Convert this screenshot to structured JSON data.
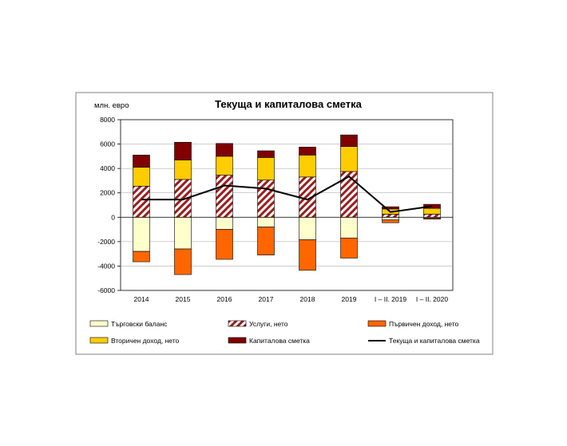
{
  "chart_data": {
    "type": "bar",
    "title": "Текуща и капиталова сметка",
    "ylabel": "млн. евро",
    "ylim": [
      -6000,
      8000
    ],
    "yticks": [
      8000,
      6000,
      4000,
      2000,
      0,
      -2000,
      -4000,
      -6000
    ],
    "categories": [
      "2014",
      "2015",
      "2016",
      "2017",
      "2018",
      "2019",
      "I – II. 2019",
      "I – II. 2020"
    ],
    "series": [
      {
        "name": "Търговски баланс",
        "kind": "bar",
        "color": "#ffffcc",
        "values": [
          -2800,
          -2600,
          -1000,
          -800,
          -1850,
          -1700,
          -220,
          -80
        ]
      },
      {
        "name": "Услуги, нето",
        "kind": "bar-hatched",
        "color": "#ffffff",
        "hatch": "#9c1c1c",
        "values": [
          2550,
          3100,
          3450,
          3050,
          3300,
          3750,
          250,
          250
        ]
      },
      {
        "name": "Първичен доход, нето",
        "kind": "bar",
        "color": "#ff6600",
        "values": [
          -850,
          -2100,
          -2450,
          -2300,
          -2500,
          -1650,
          -230,
          -80
        ]
      },
      {
        "name": "Вторичен доход, нето",
        "kind": "bar",
        "color": "#ffcc00",
        "values": [
          1550,
          1600,
          1550,
          1850,
          1800,
          2050,
          430,
          480
        ]
      },
      {
        "name": "Капиталова сметка",
        "kind": "bar",
        "color": "#800000",
        "values": [
          1000,
          1450,
          1050,
          550,
          650,
          950,
          180,
          330
        ]
      },
      {
        "name": "Текуща и капиталова сметка",
        "kind": "line",
        "color": "#000000",
        "values": [
          1450,
          1450,
          2600,
          2350,
          1450,
          3350,
          430,
          900
        ]
      }
    ],
    "legend": "bottom"
  }
}
